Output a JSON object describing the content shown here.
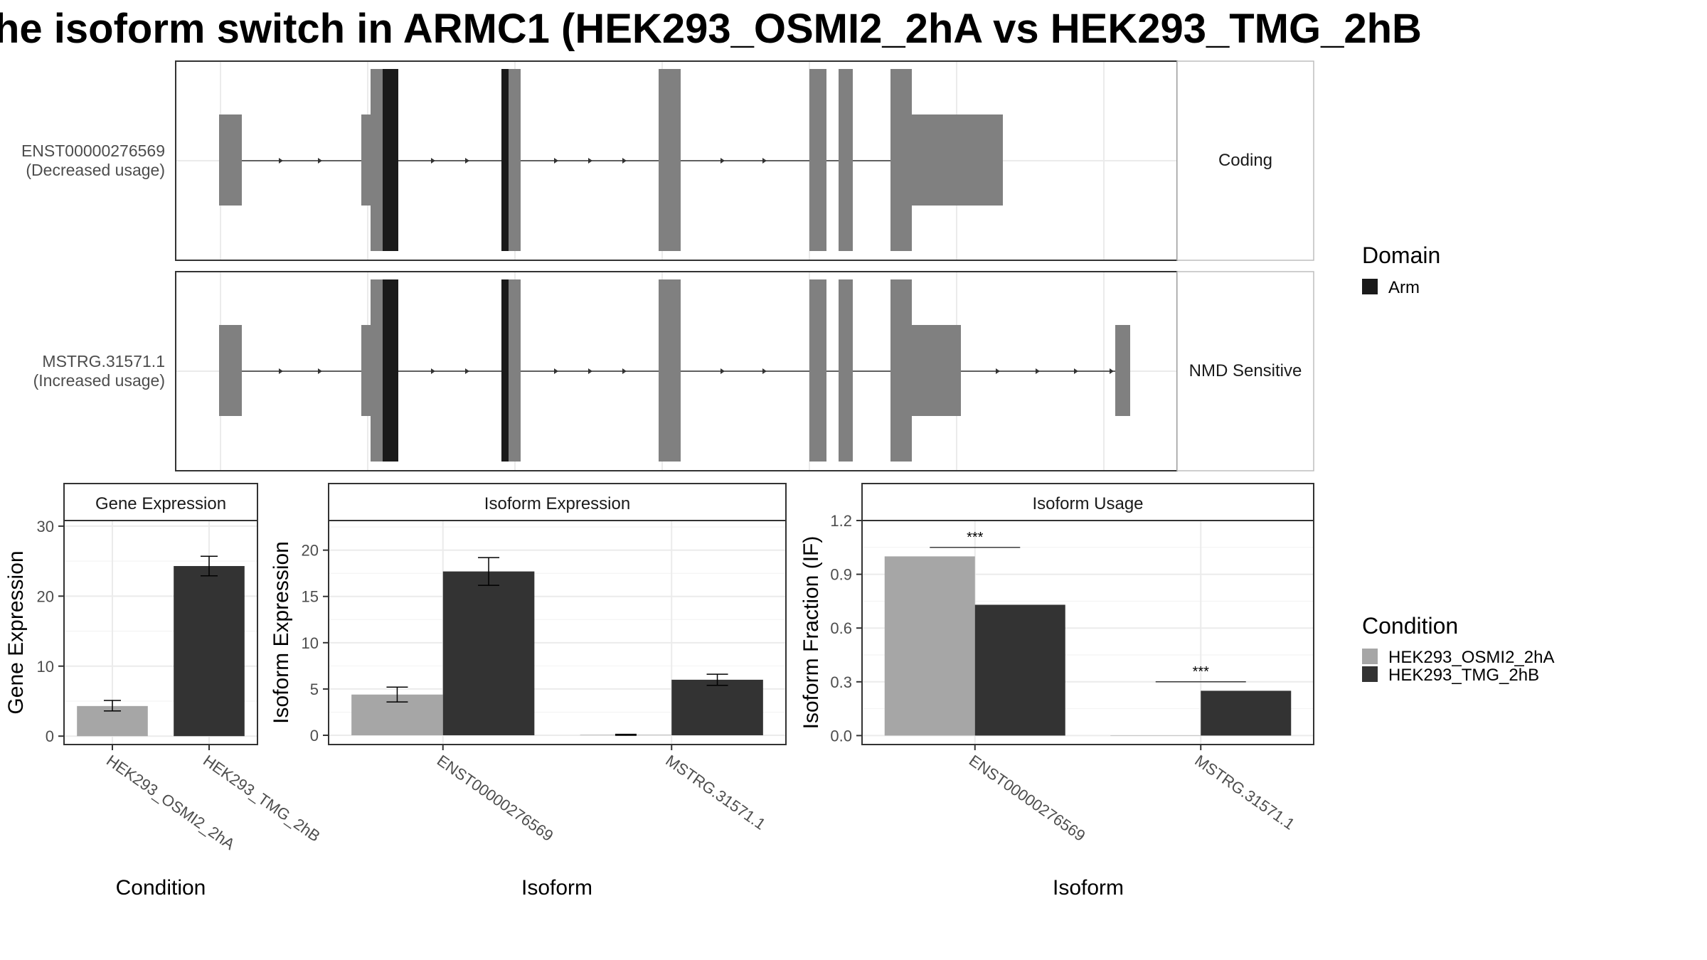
{
  "title": "he isoform switch in ARMC1 (HEK293_OSMI2_2hA vs HEK293_TMG_2hB",
  "colors": {
    "exon": "#808080",
    "domain": "#1a1a1a",
    "cond_a": "#a6a6a6",
    "cond_b": "#333333",
    "grid": "#ebebeb",
    "panel_border": "#333333",
    "strip_bg": "#ffffff"
  },
  "transcript_panel": {
    "tracks": [
      {
        "label_line1": "ENST00000276569",
        "label_line2": "(Decreased usage)",
        "facet": "Coding"
      },
      {
        "label_line1": "MSTRG.31571.1",
        "label_line2": "(Increased usage)",
        "facet": "NMD Sensitive"
      }
    ]
  },
  "legend_domain": {
    "title": "Domain",
    "items": [
      {
        "label": "Arm",
        "color_key": "domain"
      }
    ]
  },
  "legend_condition": {
    "title": "Condition",
    "items": [
      {
        "label": "HEK293_OSMI2_2hA",
        "color_key": "cond_a"
      },
      {
        "label": "HEK293_TMG_2hB",
        "color_key": "cond_b"
      }
    ]
  },
  "chart_data": [
    {
      "type": "bar",
      "facet": "Gene Expression",
      "xlabel": "Condition",
      "ylabel": "Gene Expression",
      "categories": [
        "HEK293_OSMI2_2hA",
        "HEK293_TMG_2hB"
      ],
      "values": [
        4.3,
        24.3
      ],
      "errors": [
        [
          3.6,
          5.1
        ],
        [
          22.9,
          25.7
        ]
      ],
      "ylim": [
        -1.2,
        30.8
      ],
      "yticks": [
        "0",
        "10",
        "20",
        "30"
      ],
      "grid": true
    },
    {
      "type": "bar",
      "facet": "Isoform Expression",
      "xlabel": "Isoform",
      "ylabel": "Isoform Expression",
      "categories": [
        "ENST00000276569",
        "MSTRG.31571.1"
      ],
      "series": [
        {
          "name": "HEK293_OSMI2_2hA",
          "values": [
            4.4,
            0.05
          ],
          "errors": [
            [
              3.6,
              5.2
            ],
            [
              0.0,
              0.1
            ]
          ]
        },
        {
          "name": "HEK293_TMG_2hB",
          "values": [
            17.7,
            6.0
          ],
          "errors": [
            [
              16.2,
              19.2
            ],
            [
              5.4,
              6.6
            ]
          ]
        }
      ],
      "ylim": [
        -1.0,
        23.2
      ],
      "yticks": [
        "0",
        "5",
        "10",
        "15",
        "20"
      ],
      "grid": true
    },
    {
      "type": "bar",
      "facet": "Isoform Usage",
      "xlabel": "Isoform",
      "ylabel": "Isoform Fraction (IF)",
      "categories": [
        "ENST00000276569",
        "MSTRG.31571.1"
      ],
      "series": [
        {
          "name": "HEK293_OSMI2_2hA",
          "values": [
            1.0,
            0.0
          ]
        },
        {
          "name": "HEK293_TMG_2hB",
          "values": [
            0.73,
            0.25
          ]
        }
      ],
      "significance": [
        {
          "category": "ENST00000276569",
          "label": "***",
          "y": 1.05
        },
        {
          "category": "MSTRG.31571.1",
          "label": "***",
          "y": 0.3
        }
      ],
      "ylim": [
        -0.05,
        1.2
      ],
      "yticks": [
        "0.0",
        "0.3",
        "0.6",
        "0.9",
        "1.2"
      ],
      "grid": true
    }
  ]
}
